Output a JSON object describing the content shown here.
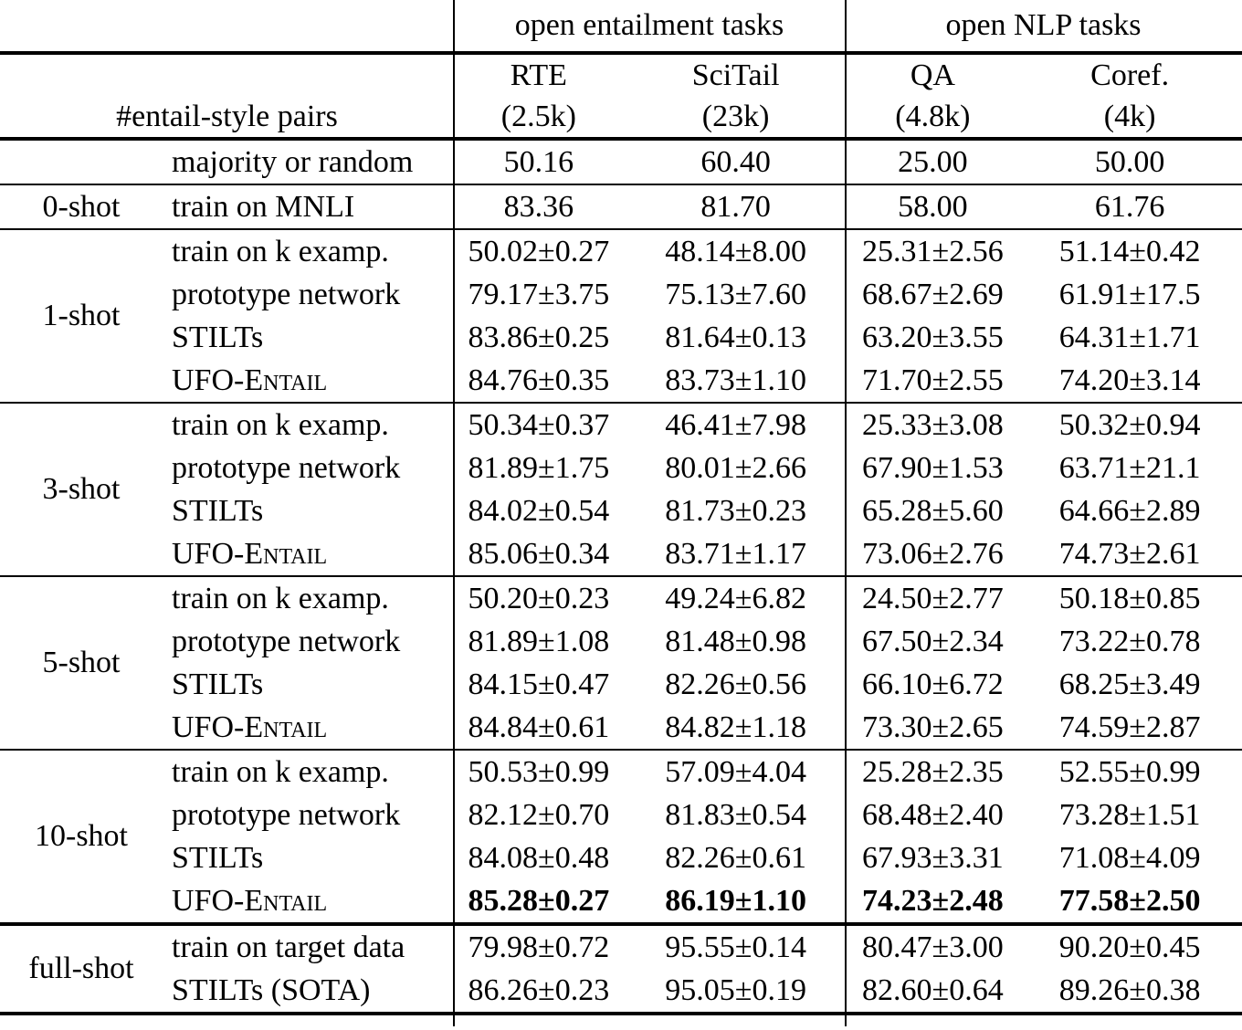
{
  "header": {
    "groups": [
      {
        "label": "open entailment tasks"
      },
      {
        "label": "open NLP tasks"
      }
    ],
    "corner_label": "#entail-style pairs",
    "columns": [
      {
        "name": "RTE",
        "count": "(2.5k)"
      },
      {
        "name": "SciTail",
        "count": "(23k)"
      },
      {
        "name": "QA",
        "count": "(4.8k)"
      },
      {
        "name": "Coref.",
        "count": "(4k)"
      }
    ]
  },
  "sections": [
    {
      "shot": "",
      "rule_after": "single",
      "rows": [
        {
          "method": "majority or random",
          "values": [
            "50.16",
            "60.40",
            "25.00",
            "50.00"
          ]
        }
      ]
    },
    {
      "shot": "0-shot",
      "rule_after": "single",
      "rows": [
        {
          "method": "train on MNLI",
          "values": [
            "83.36",
            "81.70",
            "58.00",
            "61.76"
          ]
        }
      ]
    },
    {
      "shot": "1-shot",
      "rule_after": "single",
      "rows": [
        {
          "method": "train on k examp.",
          "values": [
            "50.02±0.27",
            "48.14±8.00",
            "25.31±2.56",
            "51.14±0.42"
          ]
        },
        {
          "method": "prototype network",
          "values": [
            "79.17±3.75",
            "75.13±7.60",
            "68.67±2.69",
            "61.91±17.5"
          ]
        },
        {
          "method": "STILTs",
          "values": [
            "83.86±0.25",
            "81.64±0.13",
            "63.20±3.55",
            "64.31±1.71"
          ]
        },
        {
          "method": "UFO-Entail",
          "smallcaps": true,
          "values": [
            "84.76±0.35",
            "83.73±1.10",
            "71.70±2.55",
            "74.20±3.14"
          ]
        }
      ]
    },
    {
      "shot": "3-shot",
      "rule_after": "single",
      "rows": [
        {
          "method": "train on k examp.",
          "values": [
            "50.34±0.37",
            "46.41±7.98",
            "25.33±3.08",
            "50.32±0.94"
          ]
        },
        {
          "method": "prototype network",
          "values": [
            "81.89±1.75",
            "80.01±2.66",
            "67.90±1.53",
            "63.71±21.1"
          ]
        },
        {
          "method": "STILTs",
          "values": [
            "84.02±0.54",
            "81.73±0.23",
            "65.28±5.60",
            "64.66±2.89"
          ]
        },
        {
          "method": "UFO-Entail",
          "smallcaps": true,
          "values": [
            "85.06±0.34",
            "83.71±1.17",
            "73.06±2.76",
            "74.73±2.61"
          ]
        }
      ]
    },
    {
      "shot": "5-shot",
      "rule_after": "single",
      "rows": [
        {
          "method": "train on k examp.",
          "values": [
            "50.20±0.23",
            "49.24±6.82",
            "24.50±2.77",
            "50.18±0.85"
          ]
        },
        {
          "method": "prototype network",
          "values": [
            "81.89±1.08",
            "81.48±0.98",
            "67.50±2.34",
            "73.22±0.78"
          ]
        },
        {
          "method": "STILTs",
          "values": [
            "84.15±0.47",
            "82.26±0.56",
            "66.10±6.72",
            "68.25±3.49"
          ]
        },
        {
          "method": "UFO-Entail",
          "smallcaps": true,
          "values": [
            "84.84±0.61",
            "84.82±1.18",
            "73.30±2.65",
            "74.59±2.87"
          ]
        }
      ]
    },
    {
      "shot": "10-shot",
      "rule_after": "double",
      "rows": [
        {
          "method": "train on k examp.",
          "values": [
            "50.53±0.99",
            "57.09±4.04",
            "25.28±2.35",
            "52.55±0.99"
          ]
        },
        {
          "method": "prototype network",
          "values": [
            "82.12±0.70",
            "81.83±0.54",
            "68.48±2.40",
            "73.28±1.51"
          ]
        },
        {
          "method": "STILTs",
          "values": [
            "84.08±0.48",
            "82.26±0.61",
            "67.93±3.31",
            "71.08±4.09"
          ]
        },
        {
          "method": "UFO-Entail",
          "smallcaps": true,
          "bold": true,
          "values": [
            "85.28±0.27",
            "86.19±1.10",
            "74.23±2.48",
            "77.58±2.50"
          ]
        }
      ]
    },
    {
      "shot": "full-shot",
      "rule_after": "double",
      "rows": [
        {
          "method": "train on target data",
          "values": [
            "79.98±0.72",
            "95.55±0.14",
            "80.47±3.00",
            "90.20±0.45"
          ]
        },
        {
          "method": "STILTs (SOTA)",
          "values": [
            "86.26±0.23",
            "95.05±0.19",
            "82.60±0.64",
            "89.26±0.38"
          ]
        }
      ]
    }
  ]
}
